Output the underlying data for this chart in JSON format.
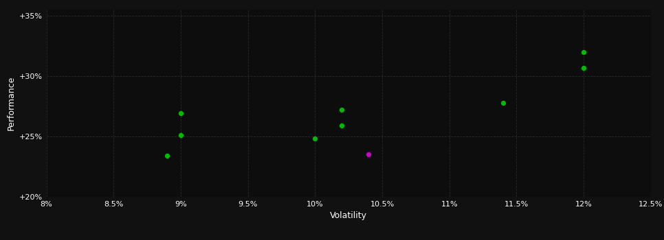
{
  "xlabel": "Volatility",
  "ylabel": "Performance",
  "background_color": "#111111",
  "plot_bg_color": "#0d0d0d",
  "grid_color": "#2a2a2a",
  "text_color": "#ffffff",
  "xlim": [
    0.08,
    0.125
  ],
  "ylim": [
    0.2,
    0.355
  ],
  "xticks": [
    0.08,
    0.085,
    0.09,
    0.095,
    0.1,
    0.105,
    0.11,
    0.115,
    0.12,
    0.125
  ],
  "yticks": [
    0.2,
    0.25,
    0.3,
    0.35
  ],
  "green_points": [
    [
      0.09,
      0.269
    ],
    [
      0.09,
      0.251
    ],
    [
      0.089,
      0.234
    ],
    [
      0.102,
      0.272
    ],
    [
      0.102,
      0.259
    ],
    [
      0.1,
      0.248
    ],
    [
      0.114,
      0.278
    ],
    [
      0.12,
      0.32
    ],
    [
      0.12,
      0.307
    ]
  ],
  "magenta_points": [
    [
      0.104,
      0.235
    ]
  ],
  "point_size": 28,
  "green_color": "#00bb00",
  "magenta_color": "#cc00cc"
}
